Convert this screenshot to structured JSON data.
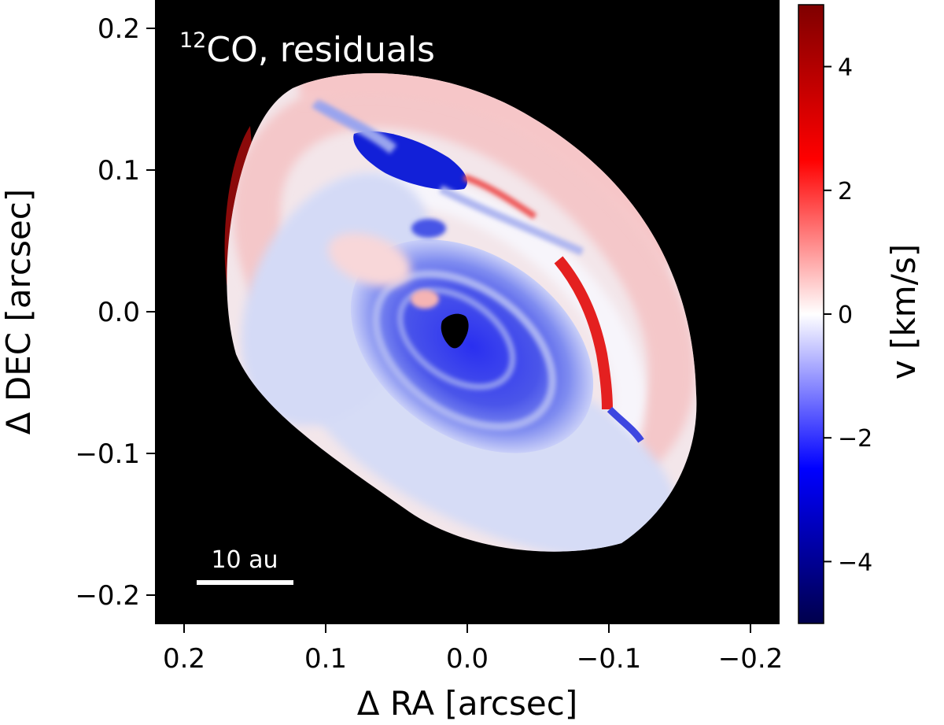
{
  "chart_data": {
    "type": "heatmap",
    "title": "12CO, residuals",
    "title_parts": {
      "superscript": "12",
      "main": "CO, residuals"
    },
    "xlabel": "Δ RA [arcsec]",
    "ylabel": "Δ DEC [arcsec]",
    "colorbar_label": "v [km/s]",
    "xlim": [
      0.22,
      -0.22
    ],
    "ylim": [
      -0.22,
      0.22
    ],
    "x_ticks": [
      0.2,
      0.1,
      0.0,
      -0.1,
      -0.2
    ],
    "x_tick_labels": [
      "0.2",
      "0.1",
      "0.0",
      "−0.1",
      "−0.2"
    ],
    "y_ticks": [
      0.2,
      0.1,
      0.0,
      -0.1,
      -0.2
    ],
    "y_tick_labels": [
      "0.2",
      "0.1",
      "0.0",
      "−0.1",
      "−0.2"
    ],
    "colorbar_range": [
      -5,
      5
    ],
    "colorbar_ticks": [
      4,
      2,
      0,
      -2,
      -4
    ],
    "colorbar_tick_labels": [
      "4",
      "2",
      "0",
      "−2",
      "−4"
    ],
    "colormap": "seismic",
    "colormap_stops": [
      "#00004c",
      "#0000ff",
      "#ffffff",
      "#ff0000",
      "#7f0000"
    ],
    "background_color": "#000000",
    "scale_bar": {
      "label": "10 au",
      "length_arcsec": 0.068
    },
    "disk": {
      "center": [
        0.0,
        0.0
      ],
      "outer_semi_major_arcsec": 0.19,
      "outer_semi_minor_arcsec": 0.135,
      "position_angle_deg": 45,
      "residual_min": -5,
      "residual_max": 5
    },
    "features": [
      {
        "name": "central-blue-spiral",
        "v": -3.0
      },
      {
        "name": "northeast-blue-arc",
        "v": -4.0
      },
      {
        "name": "west-red-arc",
        "v": 3.0
      },
      {
        "name": "east-edge-red-rim",
        "v": 5.0
      },
      {
        "name": "outer-pink-ring",
        "v": 0.8
      },
      {
        "name": "inner-white-ring",
        "v": 0.0
      }
    ]
  }
}
